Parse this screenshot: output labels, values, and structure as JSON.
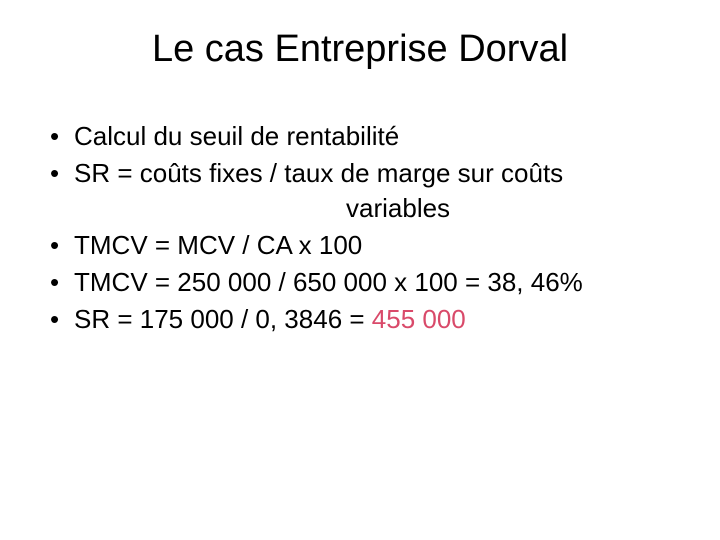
{
  "title": "Le cas Entreprise Dorval",
  "bullets": {
    "b1": "Calcul du seuil de rentabilité",
    "b2_line1": "SR = coûts fixes / taux de marge sur coûts",
    "b2_line2": "variables",
    "b3": "TMCV = MCV / CA x 100",
    "b4": "TMCV = 250 000 / 650 000 x 100 = 38, 46%",
    "b5_pre": "SR = 175 000 / 0, 3846 = ",
    "b5_highlight": "455 000"
  },
  "colors": {
    "text": "#000000",
    "highlight": "#d94a6a",
    "background": "#ffffff"
  },
  "typography": {
    "title_fontsize": 38,
    "body_fontsize": 26,
    "font_family": "Arial"
  }
}
